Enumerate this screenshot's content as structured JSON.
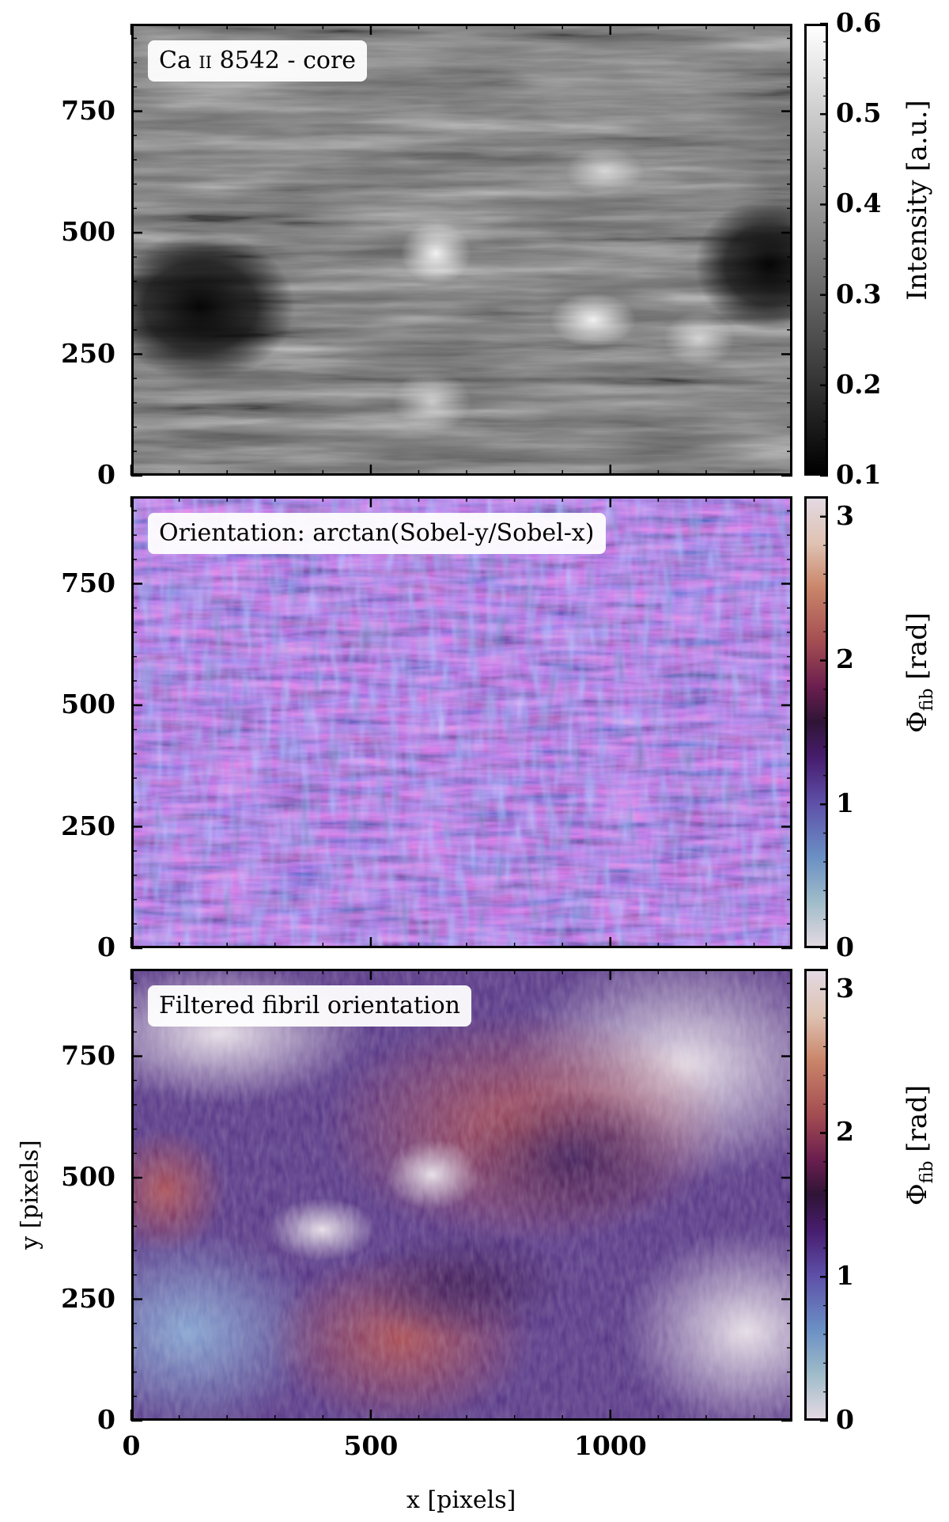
{
  "chart_data": [
    {
      "type": "heatmap",
      "title": "Ca II 8542 - core",
      "colormap": "gray",
      "xlim": [
        0,
        1380
      ],
      "ylim": [
        0,
        930
      ],
      "y_ticks": [
        0,
        250,
        500,
        750
      ],
      "colorbar": {
        "label": "Intensity [a.u.]",
        "range": [
          0.1,
          0.6
        ],
        "ticks": [
          "0.1",
          "0.2",
          "0.3",
          "0.4",
          "0.5",
          "0.6"
        ]
      }
    },
    {
      "type": "heatmap",
      "title": "Orientation: arctan(Sobel-y/Sobel-x)",
      "colormap": "twilight",
      "xlim": [
        0,
        1380
      ],
      "ylim": [
        0,
        930
      ],
      "y_ticks": [
        0,
        250,
        500,
        750
      ],
      "colorbar": {
        "label": "Φfib [rad]",
        "range": [
          0,
          3.1416
        ],
        "ticks": [
          "0",
          "1",
          "2",
          "3"
        ]
      }
    },
    {
      "type": "heatmap",
      "title": "Filtered fibril orientation",
      "colormap": "twilight",
      "xlim": [
        0,
        1380
      ],
      "ylim": [
        0,
        930
      ],
      "y_ticks": [
        0,
        250,
        500,
        750
      ],
      "x_ticks": [
        0,
        500,
        1000
      ],
      "xlabel": "x [pixels]",
      "ylabel": "y [pixels]",
      "colorbar": {
        "label": "Φfib [rad]",
        "range": [
          0,
          3.1416
        ],
        "ticks": [
          "0",
          "1",
          "2",
          "3"
        ]
      }
    }
  ],
  "labels": {
    "p1_title_main": "Ca",
    "p1_title_ion": "ii",
    "p1_title_rest": "8542 - core",
    "p2_title": "Orientation: arctan(Sobel-y/Sobel-x)",
    "p3_title": "Filtered fibril orientation",
    "cbar1_label": "Intensity [a.u.]",
    "cbar_phi": "Φ",
    "cbar_phi_sub": "fib",
    "cbar_phi_unit": "[rad]",
    "xlabel": "x [pixels]",
    "ylabel": "y [pixels]"
  },
  "colors": {
    "twilight_stops": [
      "#e2d9e2",
      "#9ebbc9",
      "#6a8fc4",
      "#5e4fa8",
      "#471d6e",
      "#2f1436",
      "#6b1f4f",
      "#a44d52",
      "#c98569",
      "#dfc2b2",
      "#e2d9e2"
    ],
    "gray_stops": [
      "#000000",
      "#ffffff"
    ]
  }
}
